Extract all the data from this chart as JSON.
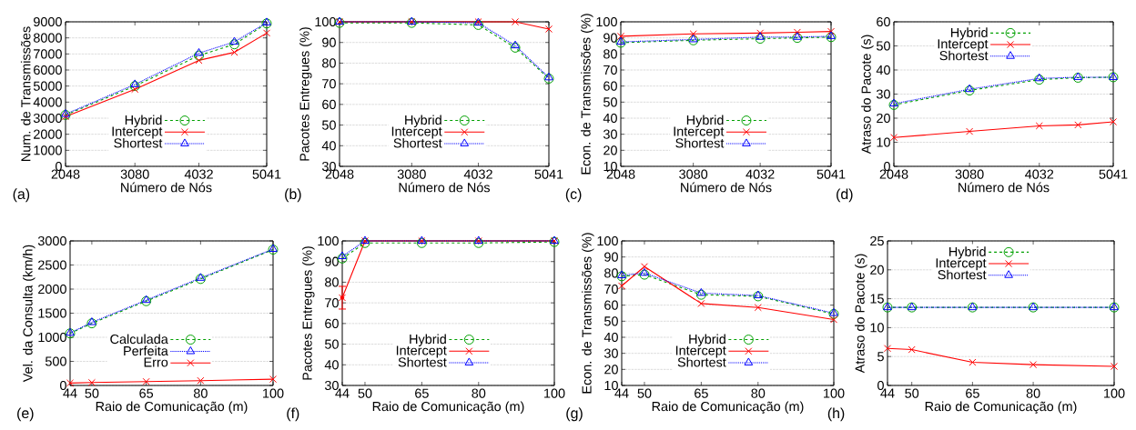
{
  "chart_data": [
    {
      "type": "line",
      "xlabel": "Número de Nós",
      "ylabel": "Num. de Transmissões",
      "annotations": [
        "(a)"
      ],
      "x": [
        2048,
        3080,
        4032,
        4560,
        5041
      ],
      "xlim": [
        2048,
        5041
      ],
      "xticks": [
        2048,
        3080,
        4032,
        5041
      ],
      "ylim": [
        0,
        9000
      ],
      "yticks": [
        0,
        1000,
        2000,
        3000,
        4000,
        5000,
        6000,
        7000,
        8000,
        9000
      ],
      "grid": "y",
      "legend": "bottom",
      "series": [
        {
          "name": "Hybrid",
          "color": "#00a000",
          "marker": "circle",
          "line_style": "dashed",
          "values": [
            3200,
            5000,
            6900,
            7600,
            8900
          ]
        },
        {
          "name": "Intercept",
          "color": "#ff0000",
          "marker": "cross",
          "line_style": "solid",
          "values": [
            3100,
            4800,
            6600,
            7100,
            8300
          ]
        },
        {
          "name": "Shortest",
          "color": "#0000ff",
          "marker": "triangle",
          "line_style": "dotted",
          "values": [
            3250,
            5100,
            7050,
            7750,
            8950
          ]
        }
      ]
    },
    {
      "type": "line",
      "xlabel": "Número de Nós",
      "ylabel": "Pacotes Entregues (%)",
      "annotations": [
        "(b)"
      ],
      "x": [
        2048,
        3080,
        4032,
        4560,
        5041
      ],
      "xlim": [
        2048,
        5041
      ],
      "xticks": [
        2048,
        3080,
        4032,
        5041
      ],
      "ylim": [
        30,
        100
      ],
      "yticks": [
        30,
        40,
        50,
        60,
        70,
        80,
        90,
        100
      ],
      "grid": "y",
      "legend": "bottom",
      "series": [
        {
          "name": "Hybrid",
          "color": "#00a000",
          "marker": "circle",
          "line_style": "dashed",
          "values": [
            99.5,
            99.5,
            98.5,
            87.5,
            72.5
          ]
        },
        {
          "name": "Intercept",
          "color": "#ff0000",
          "marker": "cross",
          "line_style": "solid",
          "values": [
            100,
            100,
            100,
            100,
            96.5
          ]
        },
        {
          "name": "Shortest",
          "color": "#0000ff",
          "marker": "triangle",
          "line_style": "dotted",
          "values": [
            100,
            100,
            99.5,
            88.5,
            73
          ]
        }
      ]
    },
    {
      "type": "line",
      "xlabel": "Número de Nós",
      "ylabel": "Econ. de Transmissões (%)",
      "annotations": [
        "(c)"
      ],
      "x": [
        2048,
        3080,
        4032,
        4560,
        5041
      ],
      "xlim": [
        2048,
        5041
      ],
      "xticks": [
        2048,
        3080,
        4032,
        5041
      ],
      "ylim": [
        10,
        100
      ],
      "yticks": [
        10,
        20,
        30,
        40,
        50,
        60,
        70,
        80,
        90,
        100
      ],
      "grid": "y",
      "legend": "bottom",
      "series": [
        {
          "name": "Hybrid",
          "color": "#00a000",
          "marker": "circle",
          "line_style": "dashed",
          "values": [
            87,
            88.5,
            89.5,
            90,
            90.5
          ]
        },
        {
          "name": "Intercept",
          "color": "#ff0000",
          "marker": "cross",
          "line_style": "solid",
          "values": [
            91,
            92.5,
            93,
            93.5,
            94
          ]
        },
        {
          "name": "Shortest",
          "color": "#0000ff",
          "marker": "triangle",
          "line_style": "dotted",
          "values": [
            87.5,
            89,
            90.5,
            90.5,
            91
          ]
        }
      ]
    },
    {
      "type": "line",
      "xlabel": "Número de Nós",
      "ylabel": "Atraso do Pacote (s)",
      "annotations": [
        "(d)"
      ],
      "x": [
        2048,
        3080,
        4032,
        4560,
        5041
      ],
      "xlim": [
        2048,
        5041
      ],
      "xticks": [
        2048,
        3080,
        4032,
        5041
      ],
      "ylim": [
        0,
        60
      ],
      "yticks": [
        0,
        10,
        20,
        30,
        40,
        50,
        60
      ],
      "grid": "y",
      "legend": "top",
      "series": [
        {
          "name": "Hybrid",
          "color": "#00a000",
          "marker": "circle",
          "line_style": "dashed",
          "values": [
            25.5,
            31.5,
            36,
            36.8,
            37
          ]
        },
        {
          "name": "Intercept",
          "color": "#ff0000",
          "marker": "cross",
          "line_style": "solid",
          "values": [
            12,
            14.5,
            16.8,
            17.2,
            18.5
          ]
        },
        {
          "name": "Shortest",
          "color": "#0000ff",
          "marker": "triangle",
          "line_style": "dotted",
          "values": [
            26,
            32,
            36.5,
            37,
            37
          ]
        }
      ]
    },
    {
      "type": "line",
      "xlabel": "Raio de Comunicação (m)",
      "ylabel": "Vel. da Consulta (km/h)",
      "annotations": [
        "(e)"
      ],
      "x": [
        44,
        50,
        65,
        80,
        100
      ],
      "xlim": [
        44,
        100
      ],
      "xticks": [
        44,
        50,
        65,
        80,
        100
      ],
      "ylim": [
        0,
        3000
      ],
      "yticks": [
        0,
        500,
        1000,
        1500,
        2000,
        2500,
        3000
      ],
      "grid": "y",
      "legend": "bottom",
      "series": [
        {
          "name": "Calculada",
          "color": "#00a000",
          "marker": "circle",
          "line_style": "dashed",
          "values": [
            1080,
            1290,
            1750,
            2210,
            2820
          ]
        },
        {
          "name": "Perfeita",
          "color": "#0000ff",
          "marker": "triangle",
          "line_style": "dotted",
          "values": [
            1090,
            1310,
            1770,
            2230,
            2830
          ]
        },
        {
          "name": "Erro",
          "color": "#ff0000",
          "marker": "cross",
          "line_style": "solid",
          "values": [
            50,
            60,
            80,
            100,
            130
          ]
        }
      ]
    },
    {
      "type": "line",
      "xlabel": "Raio de Comunicação (m)",
      "ylabel": "Pacotes Entregues (%)",
      "annotations": [
        "(f)"
      ],
      "x": [
        44,
        50,
        65,
        80,
        100
      ],
      "xlim": [
        44,
        100
      ],
      "xticks": [
        44,
        50,
        65,
        80,
        100
      ],
      "ylim": [
        30,
        100
      ],
      "yticks": [
        30,
        40,
        50,
        60,
        70,
        80,
        90,
        100
      ],
      "grid": "y",
      "legend": "bottom",
      "series": [
        {
          "name": "Hybrid",
          "color": "#00a000",
          "marker": "circle",
          "line_style": "dashed",
          "values": [
            91.5,
            99,
            99,
            99,
            99.5
          ]
        },
        {
          "name": "Intercept",
          "color": "#ff0000",
          "marker": "cross",
          "line_style": "solid",
          "values": [
            72.5,
            100,
            100,
            100,
            100
          ],
          "errors": [
            [
              67,
              78
            ],
            null,
            null,
            null,
            null
          ]
        },
        {
          "name": "Shortest",
          "color": "#0000ff",
          "marker": "triangle",
          "line_style": "dotted",
          "values": [
            92.5,
            100,
            100,
            100,
            100
          ]
        }
      ]
    },
    {
      "type": "line",
      "xlabel": "Raio de Comunicação (m)",
      "ylabel": "Econ. de Transmissões (%)",
      "annotations": [
        "(g)"
      ],
      "x": [
        44,
        50,
        65,
        80,
        100
      ],
      "xlim": [
        44,
        100
      ],
      "xticks": [
        44,
        50,
        65,
        80,
        100
      ],
      "ylim": [
        10,
        100
      ],
      "yticks": [
        10,
        20,
        30,
        40,
        50,
        60,
        70,
        80,
        90,
        100
      ],
      "grid": "y",
      "legend": "bottom",
      "series": [
        {
          "name": "Hybrid",
          "color": "#00a000",
          "marker": "circle",
          "line_style": "dashed",
          "values": [
            78,
            79,
            66.5,
            65.5,
            54.5
          ]
        },
        {
          "name": "Intercept",
          "color": "#ff0000",
          "marker": "cross",
          "line_style": "solid",
          "values": [
            72,
            84,
            61,
            58.5,
            51
          ]
        },
        {
          "name": "Shortest",
          "color": "#0000ff",
          "marker": "triangle",
          "line_style": "dotted",
          "values": [
            78.5,
            80,
            67.5,
            66,
            55
          ]
        }
      ]
    },
    {
      "type": "line",
      "xlabel": "Raio de Comunicação (m)",
      "ylabel": "Atraso do Pacote (s)",
      "annotations": [
        "(h)"
      ],
      "x": [
        44,
        50,
        65,
        80,
        100
      ],
      "xlim": [
        44,
        100
      ],
      "xticks": [
        44,
        50,
        65,
        80,
        100
      ],
      "ylim": [
        0,
        25
      ],
      "yticks": [
        0,
        5,
        10,
        15,
        20,
        25
      ],
      "grid": "y",
      "legend": "top",
      "series": [
        {
          "name": "Hybrid",
          "color": "#00a000",
          "marker": "circle",
          "line_style": "dashed",
          "values": [
            13.5,
            13.5,
            13.5,
            13.5,
            13.5
          ]
        },
        {
          "name": "Intercept",
          "color": "#ff0000",
          "marker": "cross",
          "line_style": "solid",
          "values": [
            6.4,
            6.2,
            4.0,
            3.6,
            3.3
          ]
        },
        {
          "name": "Shortest",
          "color": "#0000ff",
          "marker": "triangle",
          "line_style": "dotted",
          "values": [
            13.5,
            13.5,
            13.5,
            13.5,
            13.5
          ]
        }
      ]
    }
  ]
}
